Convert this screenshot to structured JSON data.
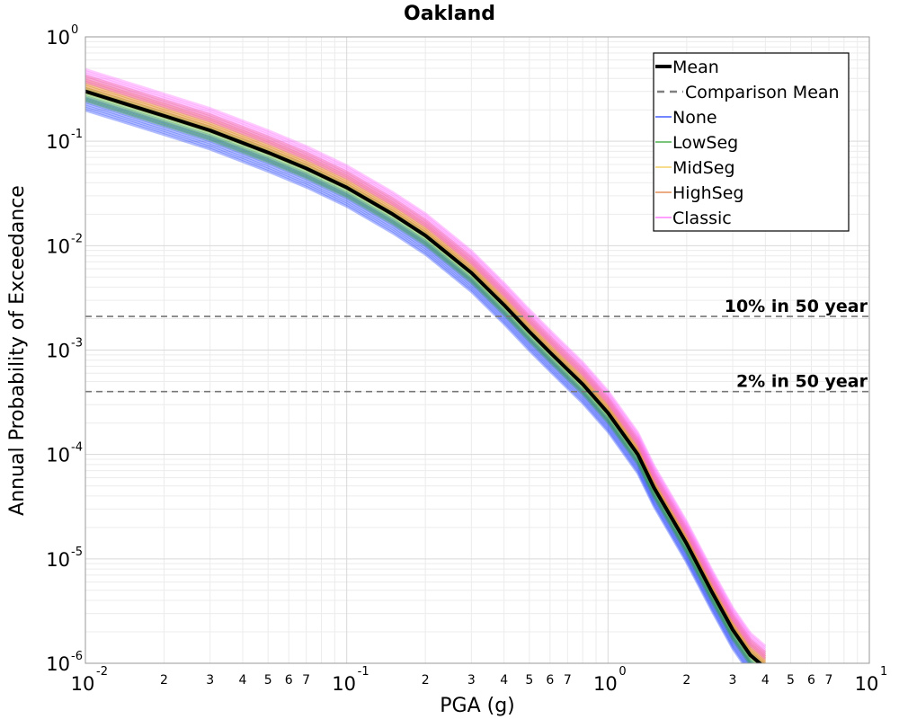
{
  "chart_data": {
    "type": "line",
    "title": "Oakland",
    "xlabel": "PGA (g)",
    "ylabel": "Annual Probability of Exceedance",
    "xscale": "log",
    "yscale": "log",
    "xlim": [
      0.01,
      10
    ],
    "ylim": [
      1e-06,
      1
    ],
    "grid": true,
    "legend_position": "top-right",
    "x_major_ticks": [
      {
        "base": "10",
        "exp": "-2"
      },
      {
        "base": "10",
        "exp": "-1"
      },
      {
        "base": "10",
        "exp": "0"
      },
      {
        "base": "10",
        "exp": "1"
      }
    ],
    "x_minor_tick_labels": [
      "2",
      "3",
      "4",
      "5",
      "6",
      "7"
    ],
    "y_major_ticks": [
      {
        "base": "10",
        "exp": "0"
      },
      {
        "base": "10",
        "exp": "-1"
      },
      {
        "base": "10",
        "exp": "-2"
      },
      {
        "base": "10",
        "exp": "-3"
      },
      {
        "base": "10",
        "exp": "-4"
      },
      {
        "base": "10",
        "exp": "-5"
      },
      {
        "base": "10",
        "exp": "-6"
      }
    ],
    "series": [
      {
        "name": "Mean",
        "color": "#000000",
        "style": "solid-thick",
        "x": [
          0.01,
          0.02,
          0.03,
          0.05,
          0.07,
          0.1,
          0.15,
          0.2,
          0.3,
          0.4,
          0.5,
          0.6,
          0.7,
          0.8,
          1.0,
          1.3,
          1.5,
          2.0,
          2.5,
          3.0,
          3.5,
          4.0
        ],
        "y": [
          0.3,
          0.175,
          0.127,
          0.078,
          0.055,
          0.036,
          0.02,
          0.0125,
          0.0055,
          0.0027,
          0.0015,
          0.00095,
          0.00065,
          0.00047,
          0.00025,
          0.0001,
          4.8e-05,
          1.4e-05,
          4.8e-06,
          2.1e-06,
          1.2e-06,
          9e-07
        ]
      },
      {
        "name": "Comparison Mean",
        "color": "#808080",
        "style": "dashed"
      },
      {
        "name": "None",
        "color": "#1f3fff",
        "style": "band",
        "offset_decades": -0.12
      },
      {
        "name": "LowSeg",
        "color": "#2ca02c",
        "style": "band",
        "offset_decades": -0.03
      },
      {
        "name": "MidSeg",
        "color": "#f2c84b",
        "style": "band",
        "offset_decades": 0.05
      },
      {
        "name": "HighSeg",
        "color": "#e07b39",
        "style": "band",
        "offset_decades": 0.09
      },
      {
        "name": "Classic",
        "color": "#ff66ff",
        "style": "band",
        "offset_decades": 0.15
      }
    ],
    "reference_lines": [
      {
        "label": "10% in 50 year",
        "y": 0.0021
      },
      {
        "label": "2% in 50 year",
        "y": 0.0004
      }
    ]
  }
}
